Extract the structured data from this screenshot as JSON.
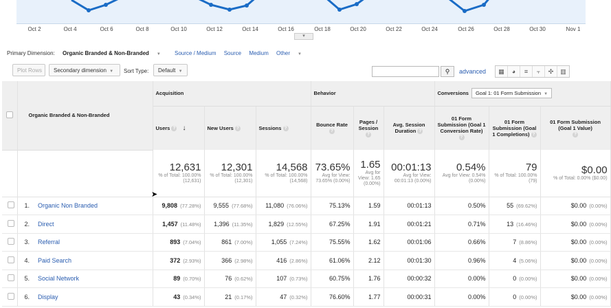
{
  "chart": {
    "dates": [
      "Oct 2",
      "Oct 4",
      "Oct 6",
      "Oct 8",
      "Oct 10",
      "Oct 12",
      "Oct 14",
      "Oct 16",
      "Oct 18",
      "Oct 20",
      "Oct 22",
      "Oct 24",
      "Oct 26",
      "Oct 28",
      "Oct 30",
      "Nov 1"
    ],
    "line_color": "#1a6cc6"
  },
  "dimensions": {
    "label": "Primary Dimension:",
    "active": "Organic Branded & Non-Branded",
    "links": [
      "Source / Medium",
      "Source",
      "Medium",
      "Other"
    ]
  },
  "toolbar": {
    "plot_rows": "Plot Rows",
    "secondary": "Secondary dimension",
    "sort_label": "Sort Type:",
    "sort_value": "Default",
    "advanced": "advanced"
  },
  "table": {
    "dimension_header": "Organic Branded & Non-Branded",
    "groups": {
      "acquisition": "Acquisition",
      "behavior": "Behavior",
      "conversions": "Conversions",
      "goal_select": "Goal 1: 01 Form Submission"
    },
    "columns": [
      "Users",
      "New Users",
      "Sessions",
      "Bounce Rate",
      "Pages / Session",
      "Avg. Session Duration",
      "01 Form Submission (Goal 1 Conversion Rate)",
      "01 Form Submission (Goal 1 Completions)",
      "01 Form Submission (Goal 1 Value)"
    ],
    "totals": [
      {
        "value": "12,631",
        "sub": "% of Total: 100.00% (12,631)"
      },
      {
        "value": "12,301",
        "sub": "% of Total: 100.00% (12,301)"
      },
      {
        "value": "14,568",
        "sub": "% of Total: 100.00% (14,568)"
      },
      {
        "value": "73.65%",
        "sub": "Avg for View: 73.65% (0.00%)"
      },
      {
        "value": "1.65",
        "sub": "Avg for View: 1.65 (0.00%)"
      },
      {
        "value": "00:01:13",
        "sub": "Avg for View: 00:01:13 (0.00%)"
      },
      {
        "value": "0.54%",
        "sub": "Avg for View: 0.54% (0.00%)"
      },
      {
        "value": "79",
        "sub": "% of Total: 100.00% (79)"
      },
      {
        "value": "$0.00",
        "sub": "% of Total: 0.00% ($0.00)"
      }
    ],
    "rows": [
      {
        "idx": "1.",
        "name": "Organic Non Branded",
        "users": "9,808",
        "users_pct": "(77.28%)",
        "new": "9,555",
        "new_pct": "(77.68%)",
        "sessions": "11,080",
        "sessions_pct": "(76.06%)",
        "bounce": "75.13%",
        "pages": "1.59",
        "duration": "00:01:13",
        "conv": "0.50%",
        "comp": "55",
        "comp_pct": "(69.62%)",
        "value": "$0.00",
        "value_pct": "(0.00%)"
      },
      {
        "idx": "2.",
        "name": "Direct",
        "users": "1,457",
        "users_pct": "(11.48%)",
        "new": "1,396",
        "new_pct": "(11.35%)",
        "sessions": "1,829",
        "sessions_pct": "(12.55%)",
        "bounce": "67.25%",
        "pages": "1.91",
        "duration": "00:01:21",
        "conv": "0.71%",
        "comp": "13",
        "comp_pct": "(16.46%)",
        "value": "$0.00",
        "value_pct": "(0.00%)"
      },
      {
        "idx": "3.",
        "name": "Referral",
        "users": "893",
        "users_pct": "(7.04%)",
        "new": "861",
        "new_pct": "(7.00%)",
        "sessions": "1,055",
        "sessions_pct": "(7.24%)",
        "bounce": "75.55%",
        "pages": "1.62",
        "duration": "00:01:06",
        "conv": "0.66%",
        "comp": "7",
        "comp_pct": "(8.86%)",
        "value": "$0.00",
        "value_pct": "(0.00%)"
      },
      {
        "idx": "4.",
        "name": "Paid Search",
        "users": "372",
        "users_pct": "(2.93%)",
        "new": "366",
        "new_pct": "(2.98%)",
        "sessions": "416",
        "sessions_pct": "(2.86%)",
        "bounce": "61.06%",
        "pages": "2.12",
        "duration": "00:01:30",
        "conv": "0.96%",
        "comp": "4",
        "comp_pct": "(5.06%)",
        "value": "$0.00",
        "value_pct": "(0.00%)"
      },
      {
        "idx": "5.",
        "name": "Social Network",
        "users": "89",
        "users_pct": "(0.70%)",
        "new": "76",
        "new_pct": "(0.62%)",
        "sessions": "107",
        "sessions_pct": "(0.73%)",
        "bounce": "60.75%",
        "pages": "1.76",
        "duration": "00:00:32",
        "conv": "0.00%",
        "comp": "0",
        "comp_pct": "(0.00%)",
        "value": "$0.00",
        "value_pct": "(0.00%)"
      },
      {
        "idx": "6.",
        "name": "Display",
        "users": "43",
        "users_pct": "(0.34%)",
        "new": "21",
        "new_pct": "(0.17%)",
        "sessions": "47",
        "sessions_pct": "(0.32%)",
        "bounce": "76.60%",
        "pages": "1.77",
        "duration": "00:00:31",
        "conv": "0.00%",
        "comp": "0",
        "comp_pct": "(0.00%)",
        "value": "$0.00",
        "value_pct": "(0.00%)"
      }
    ]
  }
}
